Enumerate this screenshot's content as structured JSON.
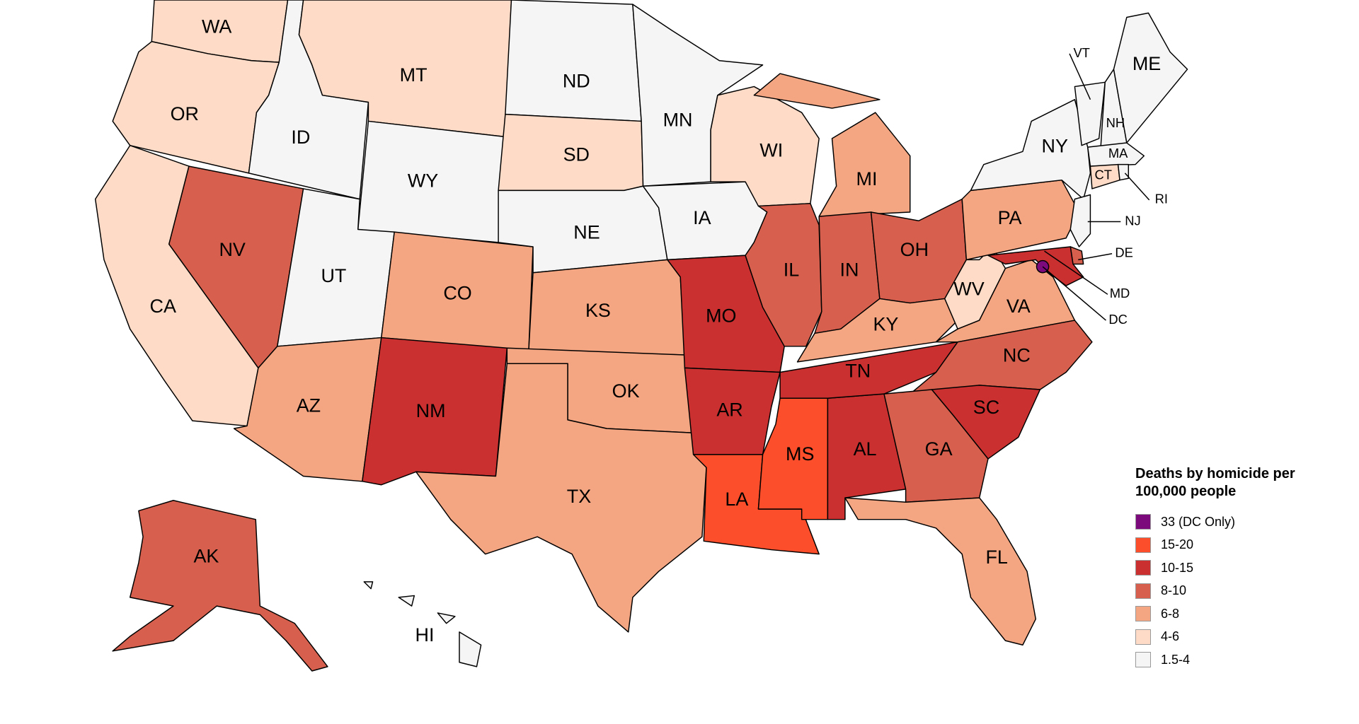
{
  "legend": {
    "title": "Deaths by homicide per 100,000 people",
    "bins": [
      {
        "label": "33 (DC Only)",
        "color": "#7d0a7d"
      },
      {
        "label": "15-20",
        "color": "#fc4e2a"
      },
      {
        "label": "10-15",
        "color": "#cb3030"
      },
      {
        "label": "8-10",
        "color": "#d6604d"
      },
      {
        "label": "6-8",
        "color": "#f4a582"
      },
      {
        "label": "4-6",
        "color": "#fddbc7"
      },
      {
        "label": "1.5-4",
        "color": "#f5f5f5"
      }
    ]
  },
  "states": [
    {
      "label": "WA",
      "color": "#fddbc7"
    },
    {
      "label": "OR",
      "color": "#fddbc7"
    },
    {
      "label": "CA",
      "color": "#fddbc7"
    },
    {
      "label": "ID",
      "color": "#f5f5f5"
    },
    {
      "label": "NV",
      "color": "#d6604d"
    },
    {
      "label": "MT",
      "color": "#fddbc7"
    },
    {
      "label": "WY",
      "color": "#f5f5f5"
    },
    {
      "label": "UT",
      "color": "#f5f5f5"
    },
    {
      "label": "AZ",
      "color": "#f4a582"
    },
    {
      "label": "CO",
      "color": "#f4a582"
    },
    {
      "label": "NM",
      "color": "#cb3030"
    },
    {
      "label": "ND",
      "color": "#f5f5f5"
    },
    {
      "label": "SD",
      "color": "#fddbc7"
    },
    {
      "label": "NE",
      "color": "#f5f5f5"
    },
    {
      "label": "KS",
      "color": "#f4a582"
    },
    {
      "label": "OK",
      "color": "#f4a582"
    },
    {
      "label": "TX",
      "color": "#f4a582"
    },
    {
      "label": "MN",
      "color": "#f5f5f5"
    },
    {
      "label": "IA",
      "color": "#f5f5f5"
    },
    {
      "label": "MO",
      "color": "#cb3030"
    },
    {
      "label": "AR",
      "color": "#cb3030"
    },
    {
      "label": "LA",
      "color": "#fc4e2a"
    },
    {
      "label": "MS",
      "color": "#fc4e2a"
    },
    {
      "label": "AL",
      "color": "#cb3030"
    },
    {
      "label": "TN",
      "color": "#cb3030"
    },
    {
      "label": "WI",
      "color": "#fddbc7"
    },
    {
      "label": "IL",
      "color": "#d6604d"
    },
    {
      "label": "MI",
      "color": "#f4a582"
    },
    {
      "label": "IN",
      "color": "#d6604d"
    },
    {
      "label": "OH",
      "color": "#d6604d"
    },
    {
      "label": "KY",
      "color": "#f4a582"
    },
    {
      "label": "WV",
      "color": "#fddbc7"
    },
    {
      "label": "VA",
      "color": "#f4a582"
    },
    {
      "label": "NC",
      "color": "#d6604d"
    },
    {
      "label": "SC",
      "color": "#cb3030"
    },
    {
      "label": "GA",
      "color": "#d6604d"
    },
    {
      "label": "FL",
      "color": "#f4a582"
    },
    {
      "label": "PA",
      "color": "#f4a582"
    },
    {
      "label": "NY",
      "color": "#f5f5f5"
    },
    {
      "label": "VT",
      "color": "#f5f5f5"
    },
    {
      "label": "NH",
      "color": "#f5f5f5"
    },
    {
      "label": "ME",
      "color": "#f5f5f5"
    },
    {
      "label": "MA",
      "color": "#f5f5f5"
    },
    {
      "label": "CT",
      "color": "#fddbc7"
    },
    {
      "label": "RI",
      "color": "#f5f5f5"
    },
    {
      "label": "NJ",
      "color": "#f5f5f5"
    },
    {
      "label": "DE",
      "color": "#d6604d"
    },
    {
      "label": "MD",
      "color": "#cb3030"
    },
    {
      "label": "DC",
      "color": "#7d0a7d"
    },
    {
      "label": "AK",
      "color": "#d6604d"
    },
    {
      "label": "HI",
      "color": "#f5f5f5"
    }
  ]
}
